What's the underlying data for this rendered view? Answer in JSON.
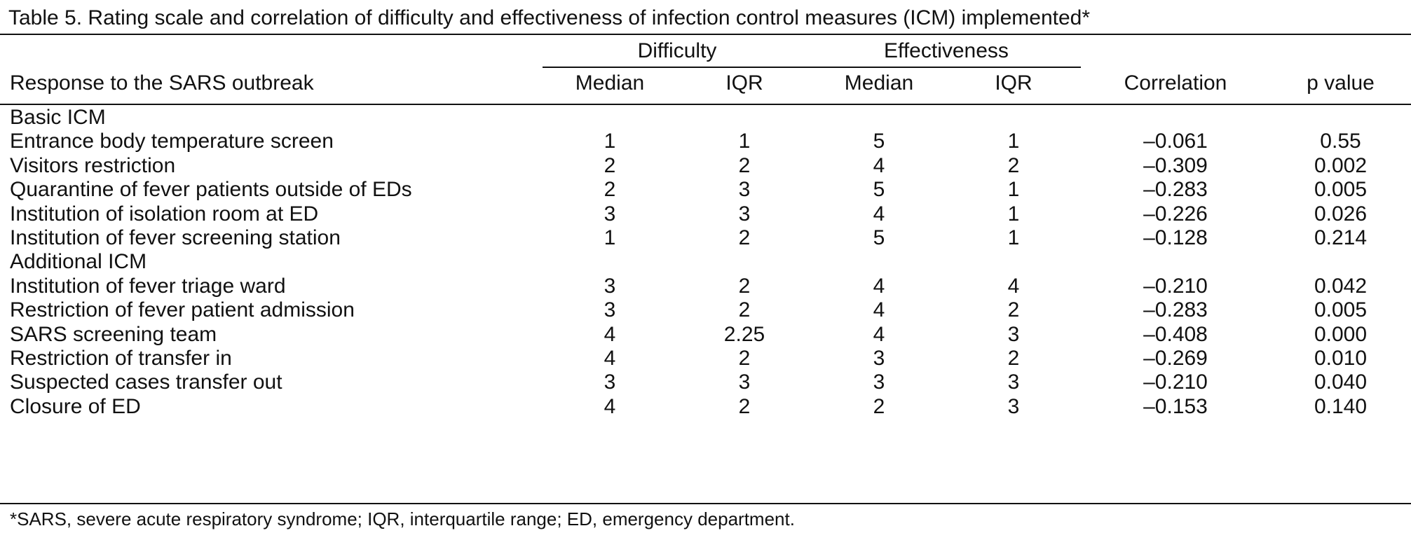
{
  "caption": "Table 5. Rating scale and correlation of difficulty and effectiveness of infection control measures (ICM) implemented*",
  "header": {
    "stub": "Response to the SARS outbreak",
    "group_difficulty": "Difficulty",
    "group_effectiveness": "Effectiveness",
    "difficulty_median": "Median",
    "difficulty_iqr": "IQR",
    "effectiveness_median": "Median",
    "effectiveness_iqr": "IQR",
    "correlation": "Correlation",
    "p_value": "p value"
  },
  "sections": [
    {
      "label": "Basic ICM",
      "rows": [
        {
          "measure": "Entrance body temperature screen",
          "diff_median": "1",
          "diff_iqr": "1",
          "eff_median": "5",
          "eff_iqr": "1",
          "correlation": "–0.061",
          "p": "0.55"
        },
        {
          "measure": "Visitors restriction",
          "diff_median": "2",
          "diff_iqr": "2",
          "eff_median": "4",
          "eff_iqr": "2",
          "correlation": "–0.309",
          "p": "0.002"
        },
        {
          "measure": "Quarantine of fever patients outside of EDs",
          "diff_median": "2",
          "diff_iqr": "3",
          "eff_median": "5",
          "eff_iqr": "1",
          "correlation": "–0.283",
          "p": "0.005"
        },
        {
          "measure": "Institution of isolation room at ED",
          "diff_median": "3",
          "diff_iqr": "3",
          "eff_median": "4",
          "eff_iqr": "1",
          "correlation": "–0.226",
          "p": "0.026"
        },
        {
          "measure": "Institution of fever screening station",
          "diff_median": "1",
          "diff_iqr": "2",
          "eff_median": "5",
          "eff_iqr": "1",
          "correlation": "–0.128",
          "p": "0.214"
        }
      ]
    },
    {
      "label": "Additional ICM",
      "rows": [
        {
          "measure": "Institution of fever triage ward",
          "diff_median": "3",
          "diff_iqr": "2",
          "eff_median": "4",
          "eff_iqr": "4",
          "correlation": "–0.210",
          "p": "0.042"
        },
        {
          "measure": "Restriction of fever patient admission",
          "diff_median": "3",
          "diff_iqr": "2",
          "eff_median": "4",
          "eff_iqr": "2",
          "correlation": "–0.283",
          "p": "0.005"
        },
        {
          "measure": "SARS screening team",
          "diff_median": "4",
          "diff_iqr": "2.25",
          "eff_median": "4",
          "eff_iqr": "3",
          "correlation": "–0.408",
          "p": "0.000"
        },
        {
          "measure": "Restriction of transfer in",
          "diff_median": "4",
          "diff_iqr": "2",
          "eff_median": "3",
          "eff_iqr": "2",
          "correlation": "–0.269",
          "p": "0.010"
        },
        {
          "measure": "Suspected cases transfer out",
          "diff_median": "3",
          "diff_iqr": "3",
          "eff_median": "3",
          "eff_iqr": "3",
          "correlation": "–0.210",
          "p": "0.040"
        },
        {
          "measure": "Closure of ED",
          "diff_median": "4",
          "diff_iqr": "2",
          "eff_median": "2",
          "eff_iqr": "3",
          "correlation": "–0.153",
          "p": "0.140"
        }
      ]
    }
  ],
  "footnote": "*SARS, severe acute respiratory syndrome; IQR, interquartile range; ED, emergency department."
}
